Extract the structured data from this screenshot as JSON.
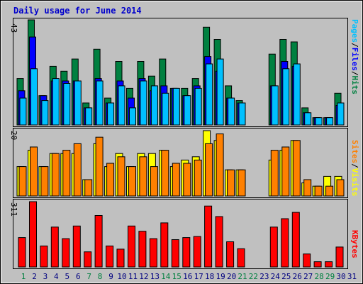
{
  "title": "Daily usage for June 2014",
  "colors": {
    "hits": "#008040",
    "files": "#0000ff",
    "pages": "#00c0ff",
    "visits": "#ffff00",
    "sites": "#ff8000",
    "kbytes": "#ff0000",
    "weekend": "#008040",
    "weekday": "#000080",
    "background": "#c0c0c0"
  },
  "chart_data": [
    {
      "type": "bar",
      "name_panel": "hits-files-pages",
      "ymax_label": "43",
      "ylim": [
        0,
        43
      ],
      "legend": [
        "Pages",
        "Files",
        "Hits"
      ],
      "categories": [
        "1",
        "2",
        "3",
        "4",
        "5",
        "6",
        "7",
        "8",
        "9",
        "10",
        "11",
        "12",
        "13",
        "14",
        "15",
        "16",
        "17",
        "18",
        "19",
        "20",
        "21",
        "22",
        "23",
        "24",
        "25",
        "26",
        "27",
        "28",
        "29",
        "30",
        "31"
      ],
      "weekend_days": [
        "1",
        "7",
        "8",
        "14",
        "15",
        "21",
        "22",
        "28",
        "29"
      ],
      "series": [
        {
          "name": "Hits",
          "values": [
            19,
            43,
            12,
            24,
            22,
            27,
            9,
            31,
            11,
            26,
            15,
            26,
            20,
            27,
            15,
            15,
            19,
            40,
            35,
            16,
            10,
            0,
            0,
            29,
            35,
            34,
            7,
            3,
            3,
            13,
            0
          ]
        },
        {
          "name": "Files",
          "values": [
            14,
            36,
            12,
            18,
            18,
            18,
            7,
            19,
            9,
            18,
            11,
            19,
            14,
            16,
            15,
            12,
            16,
            28,
            22,
            11,
            9,
            0,
            0,
            16,
            26,
            24,
            5,
            3,
            3,
            8,
            0
          ]
        },
        {
          "name": "Pages",
          "values": [
            11,
            23,
            10,
            19,
            17,
            18,
            7,
            18,
            9,
            16,
            7,
            18,
            16,
            13,
            15,
            12,
            15,
            25,
            27,
            11,
            9,
            0,
            0,
            16,
            23,
            25,
            5,
            3,
            3,
            9,
            0
          ]
        }
      ]
    },
    {
      "type": "bar",
      "name_panel": "visits-sites",
      "ymax_label": "20",
      "ylim": [
        0,
        20
      ],
      "legend": [
        "Sites",
        "Visits"
      ],
      "categories": [
        "1",
        "2",
        "3",
        "4",
        "5",
        "6",
        "7",
        "8",
        "9",
        "10",
        "11",
        "12",
        "13",
        "14",
        "15",
        "16",
        "17",
        "18",
        "19",
        "20",
        "21",
        "22",
        "23",
        "24",
        "25",
        "26",
        "27",
        "28",
        "29",
        "30",
        "31"
      ],
      "series": [
        {
          "name": "Visits",
          "values": [
            9,
            14,
            9,
            13,
            13,
            13,
            5,
            16,
            9,
            13,
            9,
            13,
            13,
            14,
            9,
            11,
            12,
            20,
            17,
            8,
            8,
            0,
            0,
            11,
            14,
            17,
            4,
            3,
            6,
            6,
            0
          ]
        },
        {
          "name": "Sites",
          "values": [
            9,
            15,
            9,
            13,
            14,
            16,
            5,
            18,
            10,
            12,
            9,
            12,
            9,
            14,
            10,
            10,
            11,
            16,
            19,
            8,
            8,
            0,
            0,
            14,
            15,
            17,
            5,
            3,
            3,
            5,
            0
          ]
        }
      ]
    },
    {
      "type": "bar",
      "name_panel": "kbytes",
      "ymax_label": "311",
      "ylim": [
        0,
        311
      ],
      "legend": [
        "KBytes"
      ],
      "categories": [
        "1",
        "2",
        "3",
        "4",
        "5",
        "6",
        "7",
        "8",
        "9",
        "10",
        "11",
        "12",
        "13",
        "14",
        "15",
        "16",
        "17",
        "18",
        "19",
        "20",
        "21",
        "22",
        "23",
        "24",
        "25",
        "26",
        "27",
        "28",
        "29",
        "30",
        "31"
      ],
      "series": [
        {
          "name": "KBytes",
          "values": [
            140,
            311,
            100,
            190,
            135,
            195,
            72,
            245,
            100,
            85,
            195,
            170,
            135,
            210,
            130,
            140,
            145,
            290,
            240,
            120,
            87,
            0,
            0,
            190,
            230,
            260,
            62,
            25,
            25,
            95,
            0
          ]
        }
      ]
    }
  ]
}
